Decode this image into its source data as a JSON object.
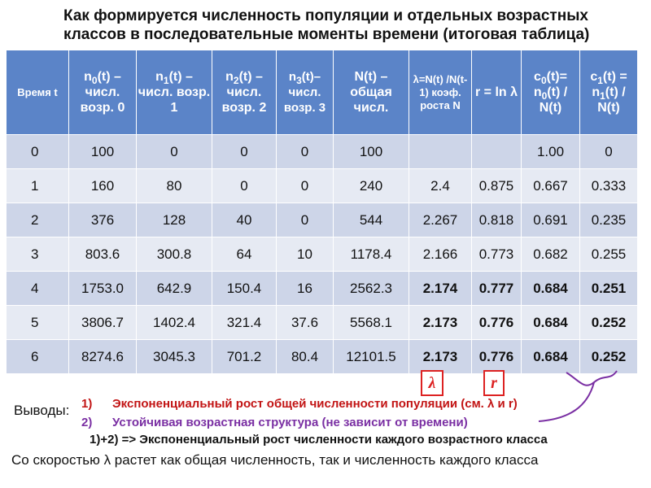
{
  "title": "Как формируется численность популяции и отдельных возрастных классов в последовательные моменты времени (итоговая таблица)",
  "table": {
    "headers": {
      "time": "Время t",
      "n0_a": "n",
      "n0_sub": "0",
      "n0_b": "(t) – числ. возр. 0",
      "n1_a": "n",
      "n1_sub": "1",
      "n1_b": "(t) – числ. возр. 1",
      "n2_a": "n",
      "n2_sub": "2",
      "n2_b": "(t) – числ. возр. 2",
      "n3_a": "n",
      "n3_sub": "3",
      "n3_b": "(t)– числ. возр. 3",
      "total": "N(t) – общая числ.",
      "lambda": "λ=N(t) /N(t-1) коэф. роста N",
      "r": "r = ln λ",
      "c0_a": "c",
      "c0_sub": "0",
      "c0_b": "(t)= n",
      "c0_sub2": "0",
      "c0_c": "(t) / N(t)",
      "c1_a": "c",
      "c1_sub": "1",
      "c1_b": "(t) = n",
      "c1_sub2": "1",
      "c1_c": "(t) / N(t)"
    },
    "rows": [
      [
        "0",
        "100",
        "0",
        "0",
        "0",
        "100",
        "",
        "",
        "1.00",
        "0"
      ],
      [
        "1",
        "160",
        "80",
        "0",
        "0",
        "240",
        "2.4",
        "0.875",
        "0.667",
        "0.333"
      ],
      [
        "2",
        "376",
        "128",
        "40",
        "0",
        "544",
        "2.267",
        "0.818",
        "0.691",
        "0.235"
      ],
      [
        "3",
        "803.6",
        "300.8",
        "64",
        "10",
        "1178.4",
        "2.166",
        "0.773",
        "0.682",
        "0.255"
      ],
      [
        "4",
        "1753.0",
        "642.9",
        "150.4",
        "16",
        "2562.3",
        "2.174",
        "0.777",
        "0.684",
        "0.251"
      ],
      [
        "5",
        "3806.7",
        "1402.4",
        "321.4",
        "37.6",
        "5568.1",
        "2.173",
        "0.776",
        "0.684",
        "0.252"
      ],
      [
        "6",
        "8274.6",
        "3045.3",
        "701.2",
        "80.4",
        "12101.5",
        "2.173",
        "0.776",
        "0.684",
        "0.252"
      ]
    ]
  },
  "markers": {
    "lambda": "λ",
    "r": "r"
  },
  "conclusions": {
    "label": "Выводы:",
    "item1_num": "1)",
    "item1": "Экспоненциальный рост общей численности популяции (см. λ и r)",
    "item2_num": "2)",
    "item2": "Устойчивая возрастная структура (не зависит от времени)",
    "item3": "1)+2) => Экспоненциальный рост численности каждого возрастного класса",
    "final": "Со скоростью λ растет как общая численность, так и численность каждого класса"
  },
  "colors": {
    "header_bg": "#5b84c8",
    "row_odd": "#cdd5e8",
    "row_even": "#e6eaf3",
    "red": "#e01414",
    "purple": "#7a2fa3"
  }
}
